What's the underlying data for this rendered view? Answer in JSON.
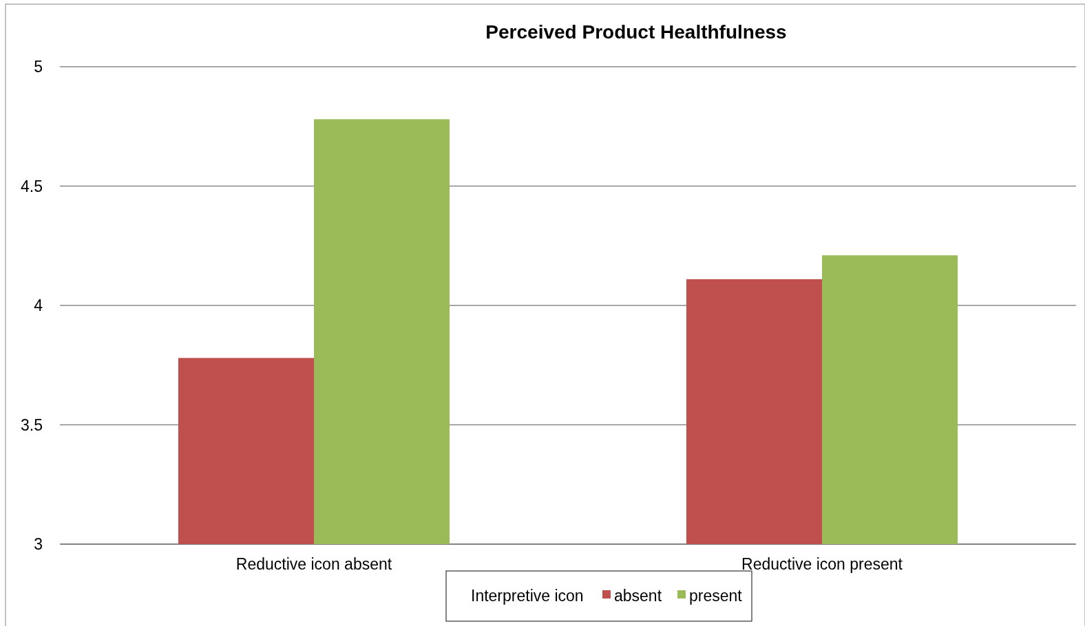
{
  "chart_data": {
    "type": "bar",
    "title": "Perceived Product Healthfulness",
    "categories": [
      "Reductive icon absent",
      "Reductive icon present"
    ],
    "series": [
      {
        "name": "absent",
        "color": "#c0504d",
        "values": [
          3.78,
          4.11
        ]
      },
      {
        "name": "present",
        "color": "#9bbb59",
        "values": [
          4.78,
          4.21
        ]
      }
    ],
    "legend_title": "Interpretive icon",
    "ylim": [
      3,
      5
    ],
    "yticks": [
      3,
      3.5,
      4,
      4.5,
      5
    ],
    "grid": "y",
    "legend": "bottom"
  }
}
